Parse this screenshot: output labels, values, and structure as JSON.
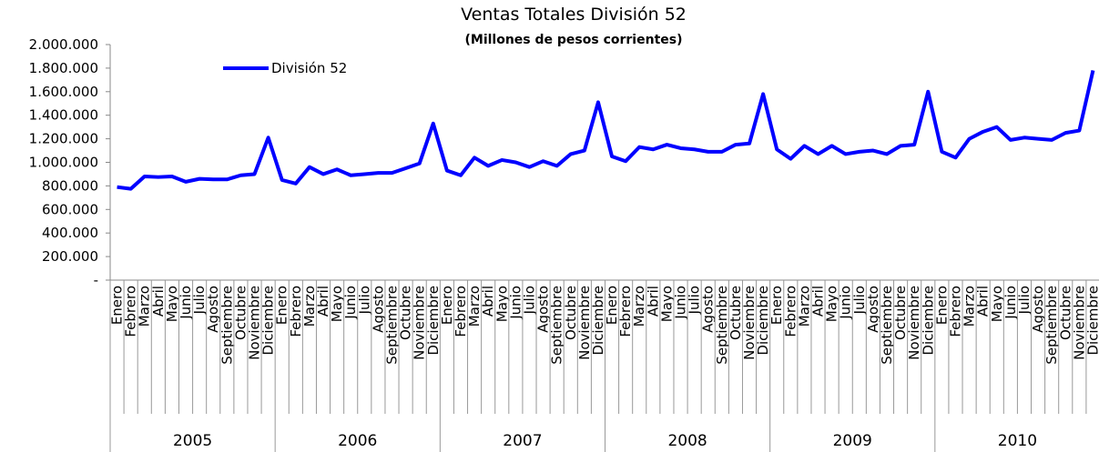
{
  "chart_data": {
    "type": "line",
    "title": "Ventas Totales División 52",
    "subtitle": "(Millones de pesos corrientes)",
    "categories": [
      "Enero",
      "Febrero",
      "Marzo",
      "Abril",
      "Mayo",
      "Junio",
      "Julio",
      "Agosto",
      "Septiembre",
      "Octubre",
      "Noviembre",
      "Diciembre",
      "Enero",
      "Febrero",
      "Marzo",
      "Abril",
      "Mayo",
      "Junio",
      "Julio",
      "Agosto",
      "Septiembre",
      "Octubre",
      "Noviembre",
      "Diciembre",
      "Enero",
      "Febrero",
      "Marzo",
      "Abril",
      "Mayo",
      "Junio",
      "Julio",
      "Agosto",
      "Septiembre",
      "Octubre",
      "Noviembre",
      "Diciembre",
      "Enero",
      "Febrero",
      "Marzo",
      "Abril",
      "Mayo",
      "Junio",
      "Julio",
      "Agosto",
      "Septiembre",
      "Octubre",
      "Noviembre",
      "Diciembre",
      "Enero",
      "Febrero",
      "Marzo",
      "Abril",
      "Mayo",
      "Junio",
      "Julio",
      "Agosto",
      "Septiembre",
      "Octubre",
      "Noviembre",
      "Diciembre",
      "Enero",
      "Febrero",
      "Marzo",
      "Abril",
      "Mayo",
      "Junio",
      "Julio",
      "Agosto",
      "Septiembre",
      "Octubre",
      "Noviembre",
      "Diciembre"
    ],
    "groups": [
      "2005",
      "2006",
      "2007",
      "2008",
      "2009",
      "2010"
    ],
    "series": [
      {
        "name": "División 52",
        "color": "#0000ff",
        "values": [
          790000,
          775000,
          880000,
          875000,
          880000,
          835000,
          860000,
          855000,
          855000,
          890000,
          900000,
          1210000,
          850000,
          820000,
          960000,
          900000,
          940000,
          890000,
          900000,
          910000,
          910000,
          950000,
          990000,
          1330000,
          930000,
          890000,
          1040000,
          970000,
          1020000,
          1000000,
          960000,
          1010000,
          970000,
          1070000,
          1100000,
          1510000,
          1050000,
          1010000,
          1130000,
          1110000,
          1150000,
          1120000,
          1110000,
          1090000,
          1090000,
          1150000,
          1160000,
          1580000,
          1110000,
          1030000,
          1140000,
          1070000,
          1140000,
          1070000,
          1090000,
          1100000,
          1070000,
          1140000,
          1150000,
          1600000,
          1090000,
          1040000,
          1200000,
          1260000,
          1300000,
          1190000,
          1210000,
          1200000,
          1190000,
          1250000,
          1270000,
          1780000
        ]
      }
    ],
    "ylim": [
      0,
      2000000
    ],
    "yticks": [
      {
        "value": 0,
        "label": "-"
      },
      {
        "value": 200000,
        "label": "200.000"
      },
      {
        "value": 400000,
        "label": "400.000"
      },
      {
        "value": 600000,
        "label": "600.000"
      },
      {
        "value": 800000,
        "label": "800.000"
      },
      {
        "value": 1000000,
        "label": "1.000.000"
      },
      {
        "value": 1200000,
        "label": "1.200.000"
      },
      {
        "value": 1400000,
        "label": "1.400.000"
      },
      {
        "value": 1600000,
        "label": "1.600.000"
      },
      {
        "value": 1800000,
        "label": "1.800.000"
      },
      {
        "value": 2000000,
        "label": "2.000.000"
      }
    ],
    "legend": "top-left"
  }
}
